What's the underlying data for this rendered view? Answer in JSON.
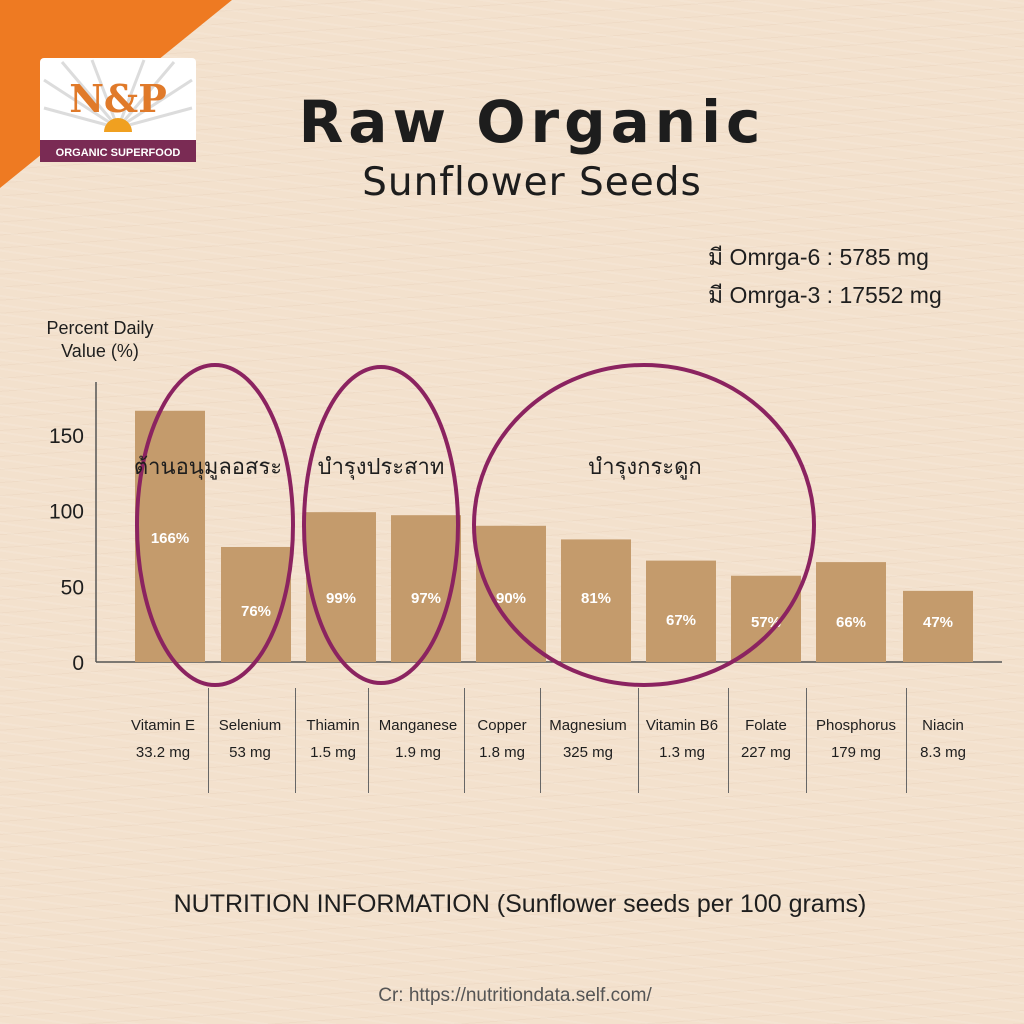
{
  "brand": {
    "name": "N&P",
    "tagline": "ORGANIC SUPERFOOD",
    "accent_color": "#ee7a22",
    "banner_color": "#7a2b54"
  },
  "header": {
    "title": "Raw Organic",
    "subtitle": "Sunflower Seeds"
  },
  "omega": {
    "omega6": "มี Omrga-6 : 5785 mg",
    "omega3": "มี Omrga-3 : 17552 mg"
  },
  "groups": {
    "antioxidant": "ต้านอนุมูลอสระ",
    "nerves": "บำรุงประสาท",
    "bones": "บำรุงกระดูก"
  },
  "footer": {
    "title": "NUTRITION INFORMATION (Sunflower seeds per 100 grams)",
    "credit": "Cr: https://nutritiondata.self.com/"
  },
  "colors": {
    "bar": "#c49b6c",
    "circle": "#8b2360",
    "axis": "#555555"
  },
  "chart_data": {
    "type": "bar",
    "ylabel": "Percent Daily Value (%)",
    "ylim": [
      0,
      185
    ],
    "yticks": [
      0,
      50,
      100,
      150
    ],
    "categories": [
      "Vitamin E",
      "Selenium",
      "Thiamin",
      "Manganese",
      "Copper",
      "Magnesium",
      "Vitamin B6",
      "Folate",
      "Phosphorus",
      "Niacin"
    ],
    "amounts": [
      "33.2 mg",
      "53 mg",
      "1.5 mg",
      "1.9 mg",
      "1.8 mg",
      "325 mg",
      "1.3 mg",
      "227 mg",
      "179 mg",
      "8.3 mg"
    ],
    "values": [
      166,
      76,
      99,
      97,
      90,
      81,
      67,
      57,
      66,
      47
    ],
    "value_labels": [
      "166%",
      "76%",
      "99%",
      "97%",
      "90%",
      "81%",
      "67%",
      "57%",
      "66%",
      "47%"
    ],
    "grid": false,
    "legend": "none"
  }
}
